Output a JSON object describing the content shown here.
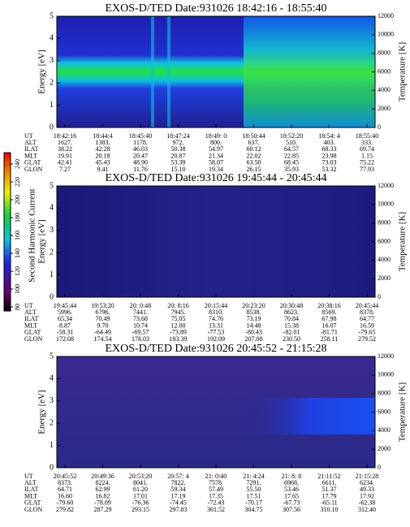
{
  "colorbar": {
    "label": "Second Harmonic Current",
    "ticks": [
      80,
      100,
      120,
      140,
      160,
      180,
      200,
      220,
      240
    ]
  },
  "panels": [
    {
      "title": "EXOS-D/TED   Date:931026   18:42:16 - 18:55:40",
      "y_label": "Energy [eV]",
      "y2_label": "Temperature [K]",
      "ylim": [
        0,
        5
      ],
      "yticks": [
        0,
        1,
        2,
        3,
        4,
        5
      ],
      "y2lim": [
        0,
        12000
      ],
      "y2ticks": [
        0,
        2000,
        4000,
        6000,
        8000,
        10000,
        12000
      ],
      "rows": [
        {
          "label": "UT",
          "values": [
            "18:42:16",
            "18:44:4",
            "18:45:40",
            "18:47:24",
            "18:49: 0",
            "18:50:44",
            "18:52:20",
            "18:54: 4",
            "18:55:40"
          ]
        },
        {
          "label": "ALT",
          "values": [
            "1627.",
            "1383.",
            "1178.",
            "972.",
            "800.",
            "637.",
            "510.",
            "403.",
            "333."
          ]
        },
        {
          "label": "ILAT",
          "values": [
            "38.22",
            "42.28",
            "46.03",
            "50.38",
            "54.97",
            "60.12",
            "64.57",
            "68.33",
            "69.74"
          ]
        },
        {
          "label": "MLT",
          "values": [
            "19.91",
            "20.18",
            "20.47",
            "20.87",
            "21.34",
            "22.02",
            "22.85",
            "23.98",
            "1.15"
          ]
        },
        {
          "label": "GLAT",
          "values": [
            "42.41",
            "45.43",
            "48.90",
            "53.39",
            "58.07",
            "63.50",
            "68.45",
            "73.03",
            "75.22"
          ]
        },
        {
          "label": "GLON",
          "values": [
            "7.27",
            "9.41",
            "11.76",
            "15.10",
            "19.34",
            "26.15",
            "35.93",
            "53.32",
            "77.93"
          ]
        }
      ]
    },
    {
      "title": "EXOS-D/TED   Date:931026   19:45:44 - 20:45:44",
      "y_label": "Energy [eV]",
      "y2_label": "Temperature [K]",
      "ylim": [
        0,
        5
      ],
      "yticks": [
        0,
        1,
        2,
        3,
        4,
        5
      ],
      "y2lim": [
        0,
        12000
      ],
      "y2ticks": [
        0,
        2000,
        4000,
        6000,
        8000,
        10000,
        12000
      ],
      "rows": [
        {
          "label": "UT",
          "values": [
            "19:45:44",
            "19:53:20",
            "20: 0:48",
            "20: 8:16",
            "20:15:44",
            "20:23:20",
            "20:30:48",
            "20:38:16",
            "20:45:44"
          ]
        },
        {
          "label": "ALT",
          "values": [
            "5996.",
            "6796.",
            "7441.",
            "7945.",
            "8310.",
            "8538.",
            "8623.",
            "8569.",
            "8378."
          ]
        },
        {
          "label": "ILAT",
          "values": [
            "65.34",
            "70.49",
            "73.68",
            "75.05",
            "74.76",
            "73.19",
            "70.84",
            "67.98",
            "64.77"
          ]
        },
        {
          "label": "MLT",
          "values": [
            "8.87",
            "9.70",
            "10.74",
            "12.00",
            "13.31",
            "14.48",
            "15.38",
            "16.07",
            "16.59"
          ]
        },
        {
          "label": "GLAT",
          "values": [
            "-58.31",
            "-64.49",
            "-69.57",
            "-73.89",
            "-77.53",
            "-80.43",
            "-82.01",
            "-81.71",
            "-79.65"
          ]
        },
        {
          "label": "GLON",
          "values": [
            "172.08",
            "174.54",
            "178.03",
            "183.39",
            "192.09",
            "207.08",
            "230.50",
            "258.11",
            "279.52"
          ]
        }
      ]
    },
    {
      "title": "EXOS-D/TED   Date:931026   20:45:52 - 21:15:28",
      "y_label": "Energy [eV]",
      "y2_label": "Temperature [K]",
      "ylim": [
        0,
        5
      ],
      "yticks": [
        0,
        1,
        2,
        3,
        4,
        5
      ],
      "y2lim": [
        0,
        12000
      ],
      "y2ticks": [
        0,
        2000,
        4000,
        6000,
        8000,
        10000,
        12000
      ],
      "rows": [
        {
          "label": "UT",
          "values": [
            "20:45:52",
            "20:49:36",
            "20:53:20",
            "20:57: 4",
            "21: 0:40",
            "21: 4:24",
            "21: 8: 8",
            "21:11:52",
            "21:15:28"
          ]
        },
        {
          "label": "ALT",
          "values": [
            "8373.",
            "8224.",
            "8041.",
            "7822.",
            "7578.",
            "7291.",
            "6968.",
            "6611.",
            "6234."
          ]
        },
        {
          "label": "ILAT",
          "values": [
            "64.71",
            "62.99",
            "61.20",
            "59.34",
            "57.49",
            "55.50",
            "53.46",
            "51.37",
            "49.33"
          ]
        },
        {
          "label": "MLT",
          "values": [
            "16.60",
            "16.82",
            "17.01",
            "17.19",
            "17.35",
            "17.51",
            "17.65",
            "17.79",
            "17.92"
          ]
        },
        {
          "label": "GLAT",
          "values": [
            "-79.60",
            "-78.09",
            "-76.36",
            "-74.45",
            "-72.43",
            "-70.17",
            "-67.73",
            "-65.11",
            "-62.38"
          ]
        },
        {
          "label": "GLON",
          "values": [
            "279.82",
            "287.29",
            "293.15",
            "297.83",
            "301.52",
            "304.75",
            "307.56",
            "310.10",
            "312.40"
          ]
        }
      ]
    }
  ]
}
